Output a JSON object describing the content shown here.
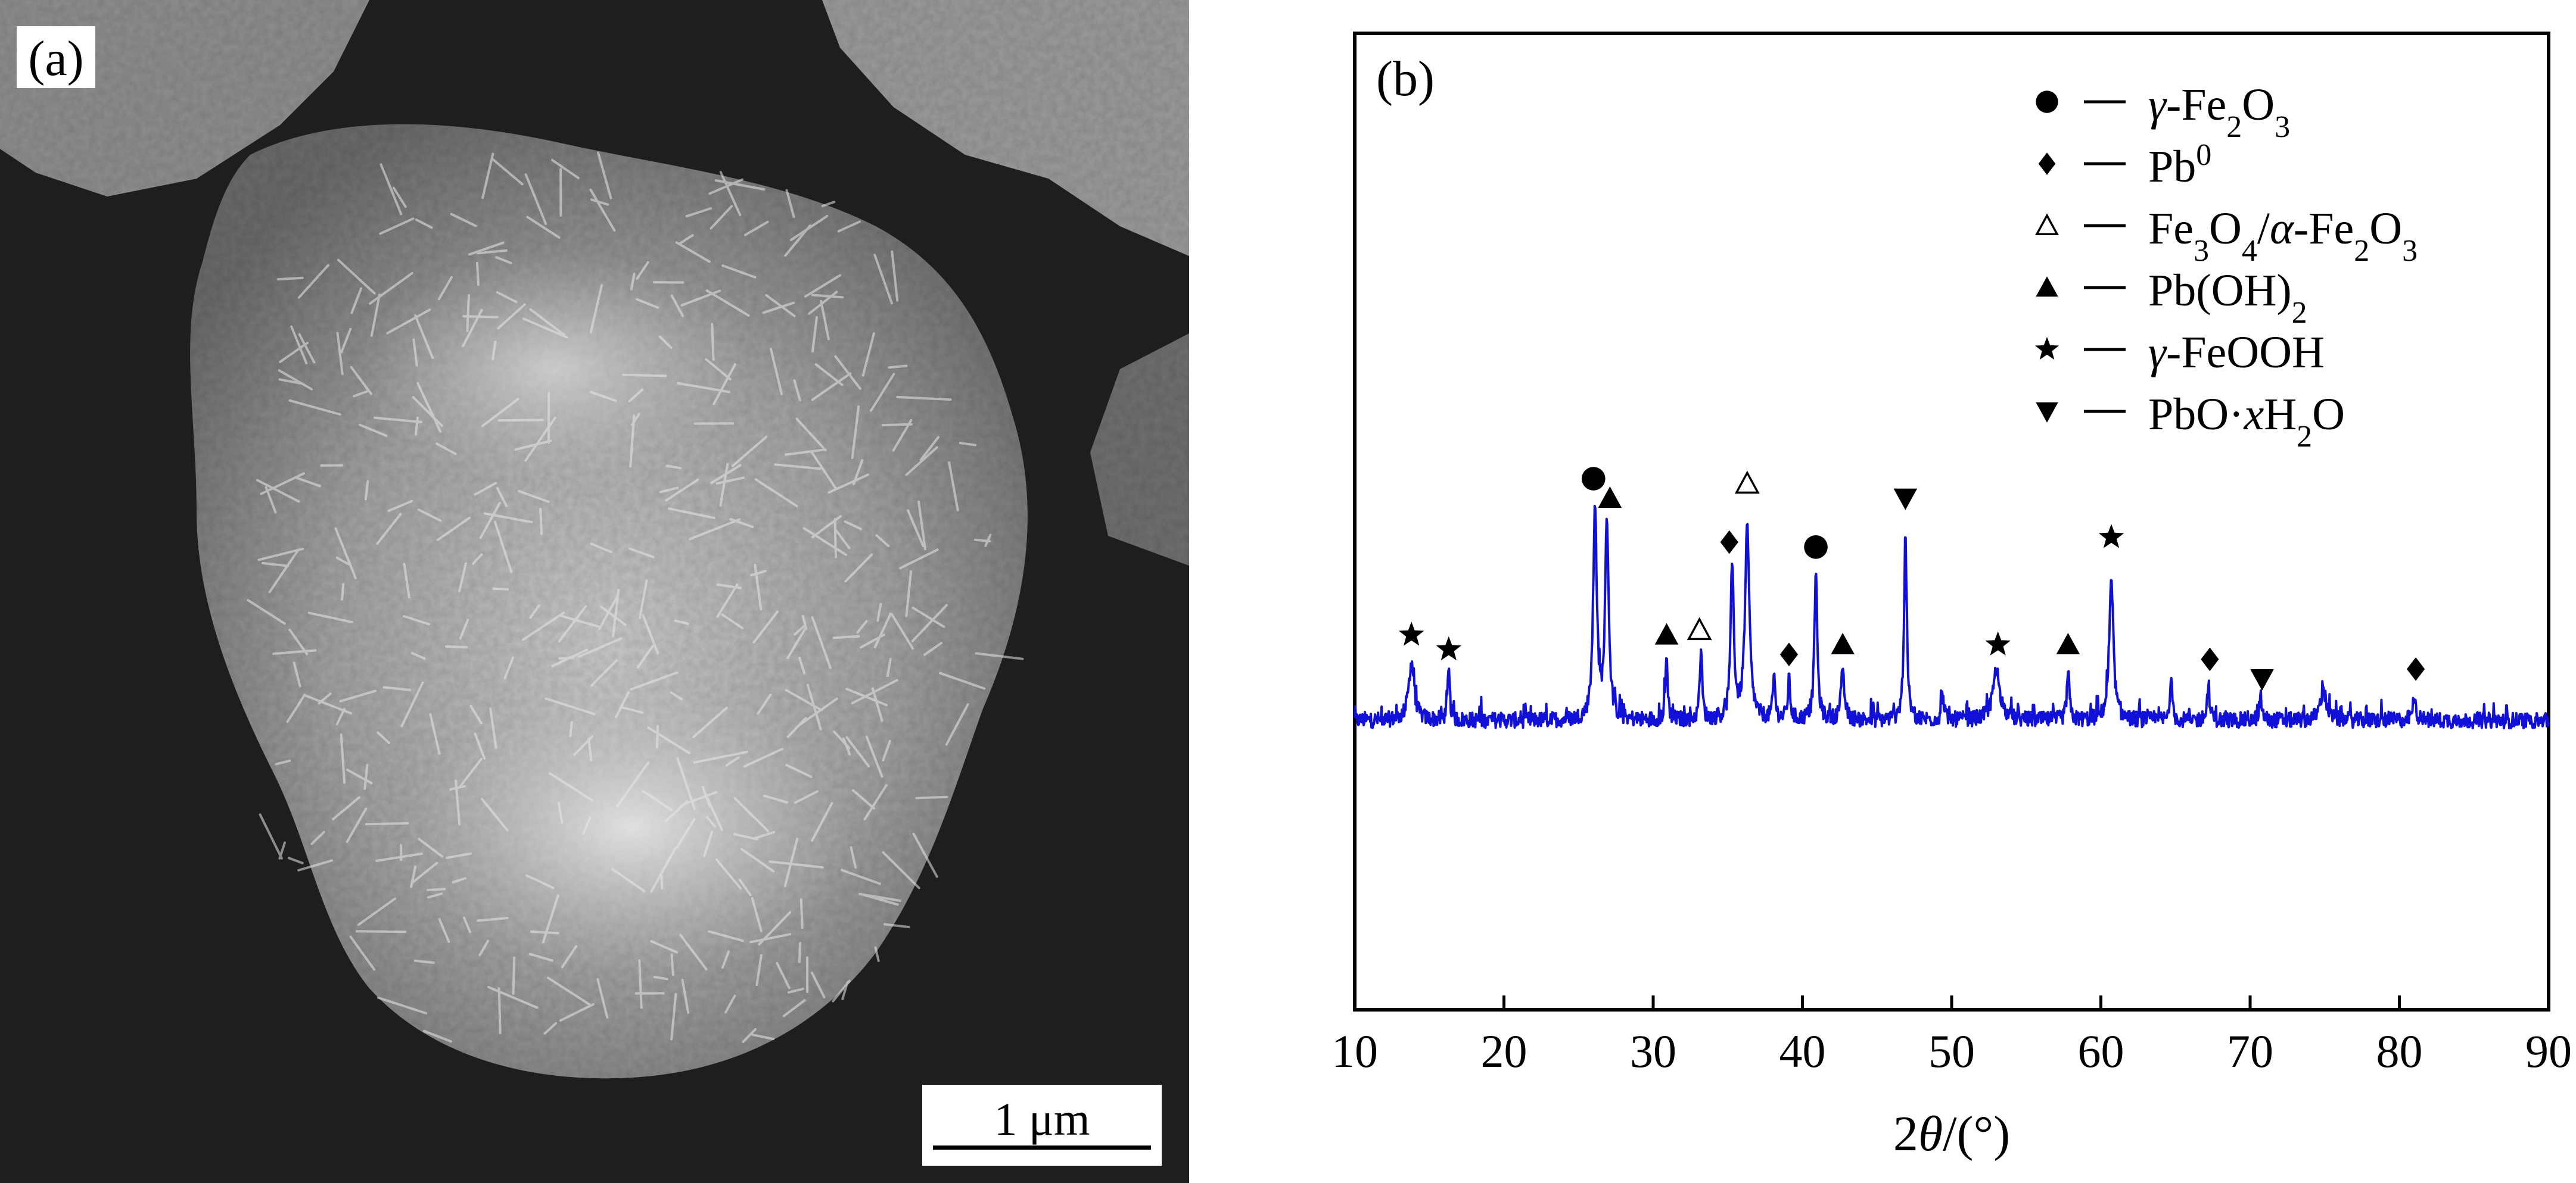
{
  "panel_a": {
    "label": "(a)",
    "scale_bar_label": "1 μm"
  },
  "panel_b": {
    "label": "(b)"
  },
  "colors": {
    "pattern": "#1010d8",
    "marker": "#000000",
    "frame": "#000000",
    "sem_background": "#1e1e1e",
    "sem_particle": "#a8a8a8"
  },
  "chart_data": {
    "type": "line",
    "title": "",
    "xlabel": "2θ/(°)",
    "ylabel": "",
    "xlim": [
      10,
      90
    ],
    "xticks": [
      10,
      20,
      30,
      40,
      50,
      60,
      70,
      80,
      90
    ],
    "y_axis_shown": false,
    "grid": false,
    "legend_position": "top-right",
    "legend": [
      {
        "marker": "filled-circle",
        "label_main": "γ-Fe",
        "parts": [
          {
            "t": "γ-Fe"
          },
          {
            "t": "2",
            "s": "sub"
          },
          {
            "t": "O"
          },
          {
            "t": "3",
            "s": "sub"
          }
        ]
      },
      {
        "marker": "filled-diamond",
        "parts": [
          {
            "t": "Pb"
          },
          {
            "t": "0",
            "s": "sup"
          }
        ]
      },
      {
        "marker": "open-triangle-up",
        "parts": [
          {
            "t": "Fe"
          },
          {
            "t": "3",
            "s": "sub"
          },
          {
            "t": "O"
          },
          {
            "t": "4",
            "s": "sub"
          },
          {
            "t": "/α-Fe"
          },
          {
            "t": "2",
            "s": "sub"
          },
          {
            "t": "O"
          },
          {
            "t": "3",
            "s": "sub"
          }
        ]
      },
      {
        "marker": "filled-triangle-up",
        "parts": [
          {
            "t": "Pb(OH)"
          },
          {
            "t": "2",
            "s": "sub"
          }
        ]
      },
      {
        "marker": "filled-star",
        "parts": [
          {
            "t": "γ-FeOOH"
          }
        ]
      },
      {
        "marker": "filled-triangle-down",
        "parts": [
          {
            "t": "PbO·xH"
          },
          {
            "t": "2",
            "s": "sub"
          },
          {
            "t": "O"
          }
        ]
      }
    ],
    "baseline_intensity": 0,
    "y_range": [
      -100,
      100
    ],
    "peaks": [
      {
        "x": 13.8,
        "height": 12,
        "width": 0.45
      },
      {
        "x": 16.3,
        "height": 10,
        "width": 0.18
      },
      {
        "x": 26.1,
        "height": 44,
        "width": 0.28
      },
      {
        "x": 26.9,
        "height": 41,
        "width": 0.28
      },
      {
        "x": 30.9,
        "height": 13,
        "width": 0.18
      },
      {
        "x": 33.2,
        "height": 15,
        "width": 0.18
      },
      {
        "x": 35.3,
        "height": 31,
        "width": 0.25
      },
      {
        "x": 36.3,
        "height": 39,
        "width": 0.35
      },
      {
        "x": 38.1,
        "height": 9,
        "width": 0.18
      },
      {
        "x": 39.1,
        "height": 8,
        "width": 0.2
      },
      {
        "x": 40.9,
        "height": 31,
        "width": 0.22
      },
      {
        "x": 42.7,
        "height": 9,
        "width": 0.3
      },
      {
        "x": 46.9,
        "height": 37,
        "width": 0.22
      },
      {
        "x": 49.4,
        "height": 6,
        "width": 0.18
      },
      {
        "x": 53.0,
        "height": 10,
        "width": 0.6
      },
      {
        "x": 57.8,
        "height": 10,
        "width": 0.2
      },
      {
        "x": 60.7,
        "height": 30,
        "width": 0.32
      },
      {
        "x": 64.7,
        "height": 10,
        "width": 0.15
      },
      {
        "x": 67.2,
        "height": 7,
        "width": 0.2
      },
      {
        "x": 70.7,
        "height": 5,
        "width": 0.2
      },
      {
        "x": 74.9,
        "height": 6,
        "width": 0.5
      },
      {
        "x": 81.0,
        "height": 4,
        "width": 0.3
      }
    ],
    "phase_markers": [
      {
        "x": 13.8,
        "y": 18,
        "marker": "filled-star"
      },
      {
        "x": 16.3,
        "y": 15,
        "marker": "filled-star"
      },
      {
        "x": 26.0,
        "y": 50,
        "marker": "filled-circle"
      },
      {
        "x": 27.1,
        "y": 46,
        "marker": "filled-triangle-up"
      },
      {
        "x": 30.9,
        "y": 18,
        "marker": "filled-triangle-up"
      },
      {
        "x": 33.1,
        "y": 19,
        "marker": "open-triangle-up"
      },
      {
        "x": 35.1,
        "y": 37,
        "marker": "filled-diamond"
      },
      {
        "x": 36.3,
        "y": 49,
        "marker": "open-triangle-up"
      },
      {
        "x": 39.1,
        "y": 14,
        "marker": "filled-diamond"
      },
      {
        "x": 40.9,
        "y": 36,
        "marker": "filled-circle"
      },
      {
        "x": 42.7,
        "y": 16,
        "marker": "filled-triangle-up"
      },
      {
        "x": 46.9,
        "y": 46,
        "marker": "filled-triangle-down"
      },
      {
        "x": 53.1,
        "y": 16,
        "marker": "filled-star"
      },
      {
        "x": 57.8,
        "y": 16,
        "marker": "filled-triangle-up"
      },
      {
        "x": 60.7,
        "y": 38,
        "marker": "filled-star"
      },
      {
        "x": 67.3,
        "y": 13,
        "marker": "filled-diamond"
      },
      {
        "x": 70.8,
        "y": 9,
        "marker": "filled-triangle-down"
      },
      {
        "x": 81.1,
        "y": 11,
        "marker": "filled-diamond"
      }
    ]
  }
}
